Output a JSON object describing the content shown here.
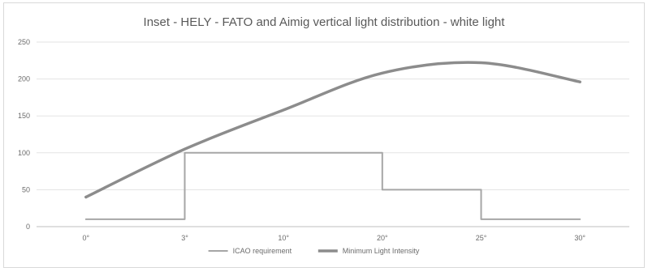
{
  "chart_data": {
    "type": "line",
    "title": "Inset - HELY - FATO and Aimig vertical light distribution - white light",
    "categories": [
      "0°",
      "3°",
      "10°",
      "20°",
      "25°",
      "30°"
    ],
    "ylim": [
      0,
      250
    ],
    "yticks": [
      0,
      50,
      100,
      150,
      200,
      250
    ],
    "grid": true,
    "legend_position": "bottom",
    "series": [
      {
        "name": "ICAO requirement",
        "style": "step",
        "color": "#a6a6a6",
        "points": [
          {
            "x": "0°",
            "y": 10
          },
          {
            "x": "3°",
            "y": 10
          },
          {
            "x": "3°",
            "y": 100
          },
          {
            "x": "10°",
            "y": 100
          },
          {
            "x": "20°",
            "y": 100
          },
          {
            "x": "20°",
            "y": 50
          },
          {
            "x": "25°",
            "y": 50
          },
          {
            "x": "25°",
            "y": 10
          },
          {
            "x": "30°",
            "y": 10
          }
        ]
      },
      {
        "name": "Minimum Light Intensity",
        "style": "smooth",
        "color": "#8c8c8c",
        "values": [
          40,
          105,
          158,
          208,
          222,
          196
        ]
      }
    ]
  }
}
